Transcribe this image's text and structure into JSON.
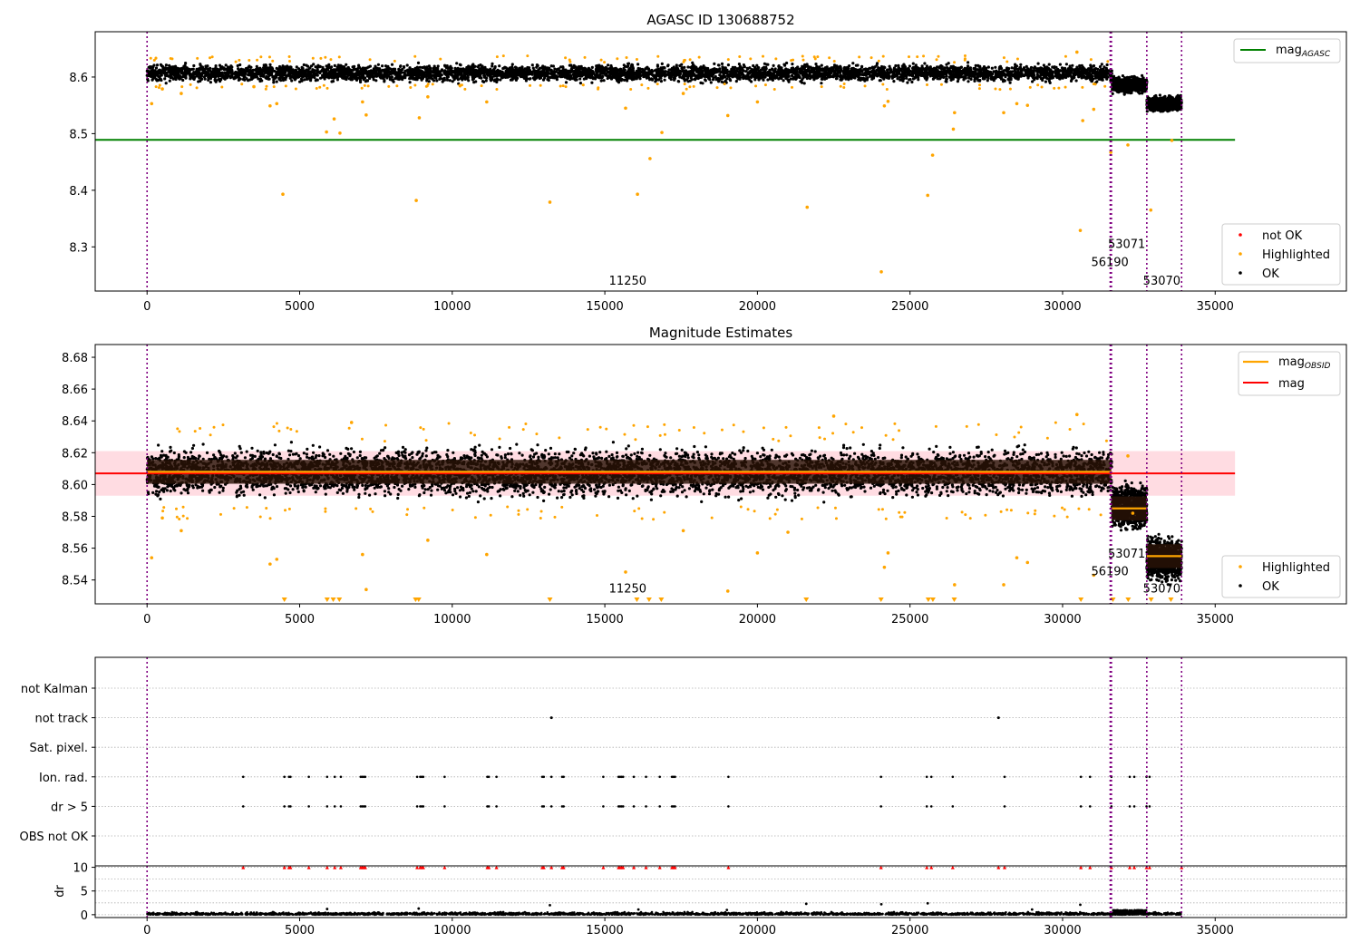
{
  "figure": {
    "title": "AGASC ID 130688752",
    "subtitle": "Magnitude Estimates",
    "colors": {
      "ok": "#000000",
      "highlighted": "#ffa500",
      "not_ok": "#ff0000",
      "agasc_line": "#008000",
      "mag_line": "#ff0000",
      "obsid_line": "#ffa500",
      "obs_boundary": "#800080",
      "band_fill": "#ffc0cb",
      "obs_shade": "#2a1206"
    }
  },
  "chart_data": [
    {
      "type": "scatter",
      "title": "AGASC ID 130688752",
      "xlim": [
        -1700,
        39300
      ],
      "ylim": [
        8.222,
        8.68
      ],
      "xticks": [
        0,
        5000,
        10000,
        15000,
        20000,
        25000,
        30000,
        35000
      ],
      "yticks": [
        8.3,
        8.4,
        8.5,
        8.6
      ],
      "grid": false,
      "mag_agasc": 8.489,
      "mag_agasc_x_range": [
        -1700,
        35650
      ],
      "legend_top": {
        "position": "upper right",
        "entries": [
          "mag_AGASC"
        ]
      },
      "legend_bottom": {
        "position": "lower right",
        "entries": [
          "not OK",
          "Highlighted",
          "OK"
        ]
      },
      "observation_boundaries": [
        0,
        31560,
        31600,
        32760,
        33900
      ],
      "obsid_labels": [
        {
          "text": "11250",
          "x": 15750,
          "y": 8.233
        },
        {
          "text": "56190",
          "x": 31550,
          "y": 8.266
        },
        {
          "text": "53071",
          "x": 32100,
          "y": 8.298
        },
        {
          "text": "53070",
          "x": 33250,
          "y": 8.233
        }
      ],
      "ok_clusters": [
        {
          "x_range": [
            0,
            31620
          ],
          "y_center": 8.607,
          "y_spread": 0.012
        },
        {
          "x_range": [
            31620,
            32760
          ],
          "y_center": 8.586,
          "y_spread": 0.011
        },
        {
          "x_range": [
            32760,
            33900
          ],
          "y_center": 8.553,
          "y_spread": 0.011
        }
      ],
      "highlighted_points": [
        {
          "x": 150,
          "y": 8.553
        },
        {
          "x": 4450,
          "y": 8.393
        },
        {
          "x": 4250,
          "y": 8.553
        },
        {
          "x": 4030,
          "y": 8.549
        },
        {
          "x": 5880,
          "y": 8.503
        },
        {
          "x": 6130,
          "y": 8.526
        },
        {
          "x": 6320,
          "y": 8.501
        },
        {
          "x": 7060,
          "y": 8.556
        },
        {
          "x": 7180,
          "y": 8.533
        },
        {
          "x": 8820,
          "y": 8.382
        },
        {
          "x": 8920,
          "y": 8.528
        },
        {
          "x": 9200,
          "y": 8.565
        },
        {
          "x": 11130,
          "y": 8.556
        },
        {
          "x": 13200,
          "y": 8.379
        },
        {
          "x": 15680,
          "y": 8.545
        },
        {
          "x": 16070,
          "y": 8.393
        },
        {
          "x": 16480,
          "y": 8.456
        },
        {
          "x": 16870,
          "y": 8.502
        },
        {
          "x": 17570,
          "y": 8.571
        },
        {
          "x": 19030,
          "y": 8.532
        },
        {
          "x": 20000,
          "y": 8.556
        },
        {
          "x": 21630,
          "y": 8.37
        },
        {
          "x": 24060,
          "y": 8.256
        },
        {
          "x": 24160,
          "y": 8.549
        },
        {
          "x": 24280,
          "y": 8.557
        },
        {
          "x": 25580,
          "y": 8.391
        },
        {
          "x": 25740,
          "y": 8.462
        },
        {
          "x": 26420,
          "y": 8.508
        },
        {
          "x": 26460,
          "y": 8.537
        },
        {
          "x": 28070,
          "y": 8.537
        },
        {
          "x": 28500,
          "y": 8.553
        },
        {
          "x": 28850,
          "y": 8.55
        },
        {
          "x": 30580,
          "y": 8.329
        },
        {
          "x": 30660,
          "y": 8.523
        },
        {
          "x": 31020,
          "y": 8.543
        },
        {
          "x": 32140,
          "y": 8.48
        },
        {
          "x": 32890,
          "y": 8.365
        },
        {
          "x": 33580,
          "y": 8.488
        },
        {
          "x": 500,
          "y": 8.579
        },
        {
          "x": 1120,
          "y": 8.571
        },
        {
          "x": 3500,
          "y": 8.583
        },
        {
          "x": 30470,
          "y": 8.644
        },
        {
          "x": 31580,
          "y": 8.467
        }
      ],
      "not_ok_points": []
    },
    {
      "type": "scatter",
      "title": "Magnitude Estimates",
      "xlim": [
        -1700,
        39300
      ],
      "ylim": [
        8.525,
        8.688
      ],
      "xticks": [
        0,
        5000,
        10000,
        15000,
        20000,
        25000,
        30000,
        35000
      ],
      "yticks": [
        8.54,
        8.56,
        8.58,
        8.6,
        8.62,
        8.64,
        8.66,
        8.68
      ],
      "grid": false,
      "mag": 8.607,
      "mag_band": [
        8.593,
        8.621
      ],
      "mag_x_range": [
        -1700,
        35650
      ],
      "mag_obsid_segments": [
        {
          "x_range": [
            0,
            31600
          ],
          "y": 8.608
        },
        {
          "x_range": [
            31600,
            32760
          ],
          "y": 8.585
        },
        {
          "x_range": [
            32760,
            33900
          ],
          "y": 8.555
        }
      ],
      "legend_top": {
        "position": "upper right",
        "entries": [
          "mag_OBSID",
          "mag"
        ]
      },
      "legend_bottom": {
        "position": "lower right",
        "entries": [
          "Highlighted",
          "OK"
        ]
      },
      "observation_boundaries": [
        0,
        31560,
        31600,
        32760,
        33900
      ],
      "obsid_labels": [
        {
          "text": "11250",
          "x": 15750,
          "y": 8.532
        },
        {
          "text": "56190",
          "x": 31550,
          "y": 8.543
        },
        {
          "text": "53071",
          "x": 32100,
          "y": 8.554
        },
        {
          "text": "53070",
          "x": 33250,
          "y": 8.532
        }
      ],
      "below_limit_x": [
        4500,
        5900,
        6100,
        6300,
        8800,
        8900,
        13200,
        16050,
        16450,
        16850,
        21600,
        24050,
        25600,
        25750,
        26450,
        30600,
        31650,
        32150,
        32900,
        33550
      ],
      "highlighted_points": [
        {
          "x": 150,
          "y": 8.554
        },
        {
          "x": 4030,
          "y": 8.55
        },
        {
          "x": 4250,
          "y": 8.553
        },
        {
          "x": 7060,
          "y": 8.556
        },
        {
          "x": 7180,
          "y": 8.534
        },
        {
          "x": 9200,
          "y": 8.565
        },
        {
          "x": 11130,
          "y": 8.556
        },
        {
          "x": 15680,
          "y": 8.545
        },
        {
          "x": 19030,
          "y": 8.533
        },
        {
          "x": 20000,
          "y": 8.557
        },
        {
          "x": 24160,
          "y": 8.548
        },
        {
          "x": 24280,
          "y": 8.557
        },
        {
          "x": 26460,
          "y": 8.537
        },
        {
          "x": 28070,
          "y": 8.537
        },
        {
          "x": 28500,
          "y": 8.554
        },
        {
          "x": 28850,
          "y": 8.551
        },
        {
          "x": 31020,
          "y": 8.543
        },
        {
          "x": 500,
          "y": 8.579
        },
        {
          "x": 1120,
          "y": 8.571
        },
        {
          "x": 6700,
          "y": 8.639
        },
        {
          "x": 22500,
          "y": 8.643
        },
        {
          "x": 30470,
          "y": 8.644
        },
        {
          "x": 17570,
          "y": 8.571
        },
        {
          "x": 21000,
          "y": 8.57
        },
        {
          "x": 32140,
          "y": 8.618
        },
        {
          "x": 32300,
          "y": 8.582
        }
      ]
    },
    {
      "type": "scatter",
      "title": "",
      "xlim": [
        -1700,
        39300
      ],
      "categories": [
        "not Kalman",
        "not track",
        "Sat. pixel.",
        "Ion. rad.",
        "dr > 5",
        "OBS not OK"
      ],
      "grid": "y dotted",
      "observation_boundaries": [
        0,
        31560,
        31600,
        32760,
        33900
      ],
      "not_track_x": [
        13250,
        27900
      ],
      "flag_x": [
        3150,
        4500,
        4650,
        4700,
        5300,
        5900,
        6150,
        6350,
        7000,
        7050,
        7100,
        7150,
        8850,
        8950,
        9000,
        9050,
        9750,
        11150,
        11200,
        11450,
        12950,
        13000,
        13250,
        13600,
        13650,
        14950,
        15450,
        15500,
        15550,
        15600,
        15950,
        16350,
        16800,
        17200,
        17250,
        17300,
        19050,
        24050,
        25550,
        25700,
        26400,
        28100,
        30600,
        30900,
        31600,
        32200,
        32350,
        32750,
        32850
      ]
    },
    {
      "type": "scatter",
      "title": "",
      "ylabel": "dr",
      "xlim": [
        -1700,
        39300
      ],
      "ylim": [
        -0.6,
        10.3
      ],
      "xticks": [
        0,
        5000,
        10000,
        15000,
        20000,
        25000,
        30000,
        35000
      ],
      "yticks": [
        0,
        5,
        10
      ],
      "grid": "y dotted",
      "observation_boundaries": [
        0,
        31560,
        31600,
        32760,
        33900
      ],
      "clipped_points_x": [
        3150,
        4500,
        4650,
        4700,
        5300,
        5900,
        6150,
        6350,
        7000,
        7050,
        7100,
        7150,
        8850,
        8950,
        9000,
        9050,
        9750,
        11150,
        11200,
        11450,
        12950,
        13000,
        13250,
        13600,
        13650,
        14950,
        15450,
        15500,
        15550,
        15600,
        15950,
        16350,
        16800,
        17200,
        17250,
        17300,
        19050,
        24050,
        25550,
        25700,
        26400,
        27900,
        28100,
        30600,
        30900,
        31600,
        32200,
        32350,
        32750,
        32850,
        33900
      ],
      "high_points": [
        {
          "x": 13200,
          "y": 2.0
        },
        {
          "x": 21600,
          "y": 2.3
        },
        {
          "x": 24060,
          "y": 2.2
        },
        {
          "x": 25580,
          "y": 2.4
        },
        {
          "x": 30580,
          "y": 2.1
        },
        {
          "x": 5900,
          "y": 1.2
        },
        {
          "x": 8900,
          "y": 1.3
        },
        {
          "x": 16100,
          "y": 1.1
        },
        {
          "x": 19000,
          "y": 1.0
        },
        {
          "x": 29000,
          "y": 1.1
        }
      ]
    }
  ]
}
